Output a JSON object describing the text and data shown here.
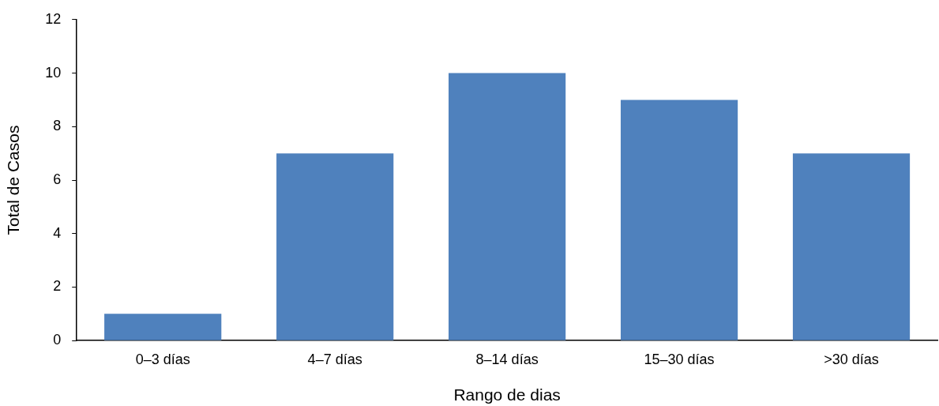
{
  "chart_data": {
    "type": "bar",
    "xlabel": "Rango de dias",
    "ylabel": "Total de Casos",
    "categories": [
      "0–3 días",
      "4–7 días",
      "8–14 días",
      "15–30 días",
      ">30 días"
    ],
    "values": [
      1,
      7,
      10,
      9,
      7
    ],
    "color": "#4f81bd",
    "ylim": [
      0,
      12
    ],
    "yticks": [
      0,
      2,
      4,
      6,
      8,
      10,
      12
    ],
    "grid": false,
    "legend": false
  }
}
